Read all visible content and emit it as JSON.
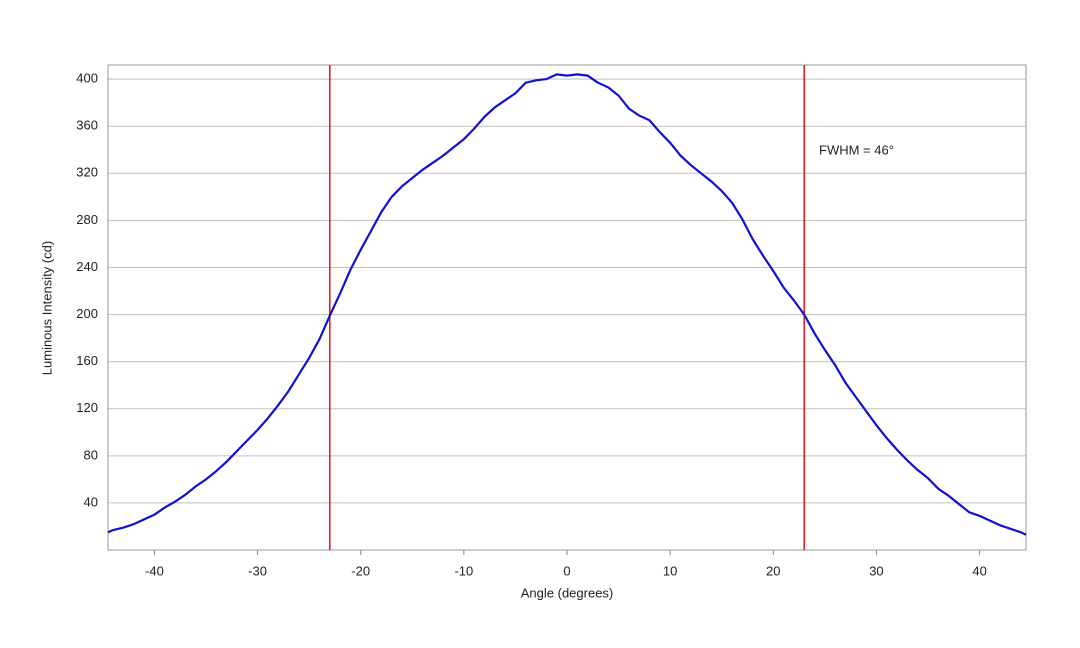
{
  "chart_data": {
    "type": "line",
    "x_label": "Angle (degrees)",
    "y_label": "Luminous Intensity (cd)",
    "annotation": "FWHM = 46°",
    "x": [
      -44.5,
      -44,
      -43,
      -42,
      -41,
      -40,
      -39,
      -38,
      -37,
      -36,
      -35,
      -34,
      -33,
      -32,
      -31,
      -30,
      -29,
      -28,
      -27,
      -26,
      -25,
      -24,
      -23,
      -22,
      -21,
      -20,
      -19,
      -18,
      -17,
      -16,
      -15,
      -14,
      -13,
      -12,
      -11,
      -10,
      -9,
      -8,
      -7,
      -6,
      -5,
      -4,
      -3,
      -2,
      -1,
      0,
      1,
      2,
      3,
      4,
      5,
      6,
      7,
      8,
      9,
      10,
      11,
      12,
      13,
      14,
      15,
      16,
      17,
      18,
      19,
      20,
      21,
      22,
      23,
      24,
      25,
      26,
      27,
      28,
      29,
      30,
      31,
      32,
      33,
      34,
      35,
      36,
      37,
      38,
      39,
      40,
      41,
      42,
      43,
      44,
      44.5
    ],
    "series": [
      {
        "name": "Luminous Intensity",
        "color": "#1010d0",
        "values": [
          15,
          17,
          19,
          22,
          26,
          30,
          36,
          41,
          47,
          54,
          60,
          67,
          75,
          84,
          93,
          102,
          112,
          123,
          135,
          149,
          163,
          179,
          199,
          218,
          238,
          255,
          271,
          287,
          300,
          309,
          316,
          323,
          329,
          335,
          342,
          349,
          358,
          368,
          376,
          382,
          388,
          397,
          399,
          400,
          404,
          403,
          404,
          403,
          397,
          393,
          386,
          375,
          369,
          365,
          355,
          346,
          335,
          327,
          320,
          313,
          305,
          295,
          281,
          264,
          250,
          237,
          223,
          212,
          200,
          184,
          170,
          157,
          142,
          130,
          118,
          106,
          95,
          85,
          76,
          68,
          61,
          52,
          46,
          39,
          32,
          29,
          25,
          21,
          18,
          15,
          13
        ]
      }
    ],
    "vlines": [
      -23,
      23
    ],
    "vline_color": "#e02020",
    "xlim": [
      -44.5,
      44.5
    ],
    "ylim": [
      0,
      412
    ],
    "xticks": [
      -40,
      -30,
      -20,
      -10,
      0,
      10,
      20,
      30,
      40
    ],
    "yticks": [
      40,
      80,
      120,
      160,
      200,
      240,
      280,
      320,
      360,
      400
    ],
    "grid": true
  }
}
